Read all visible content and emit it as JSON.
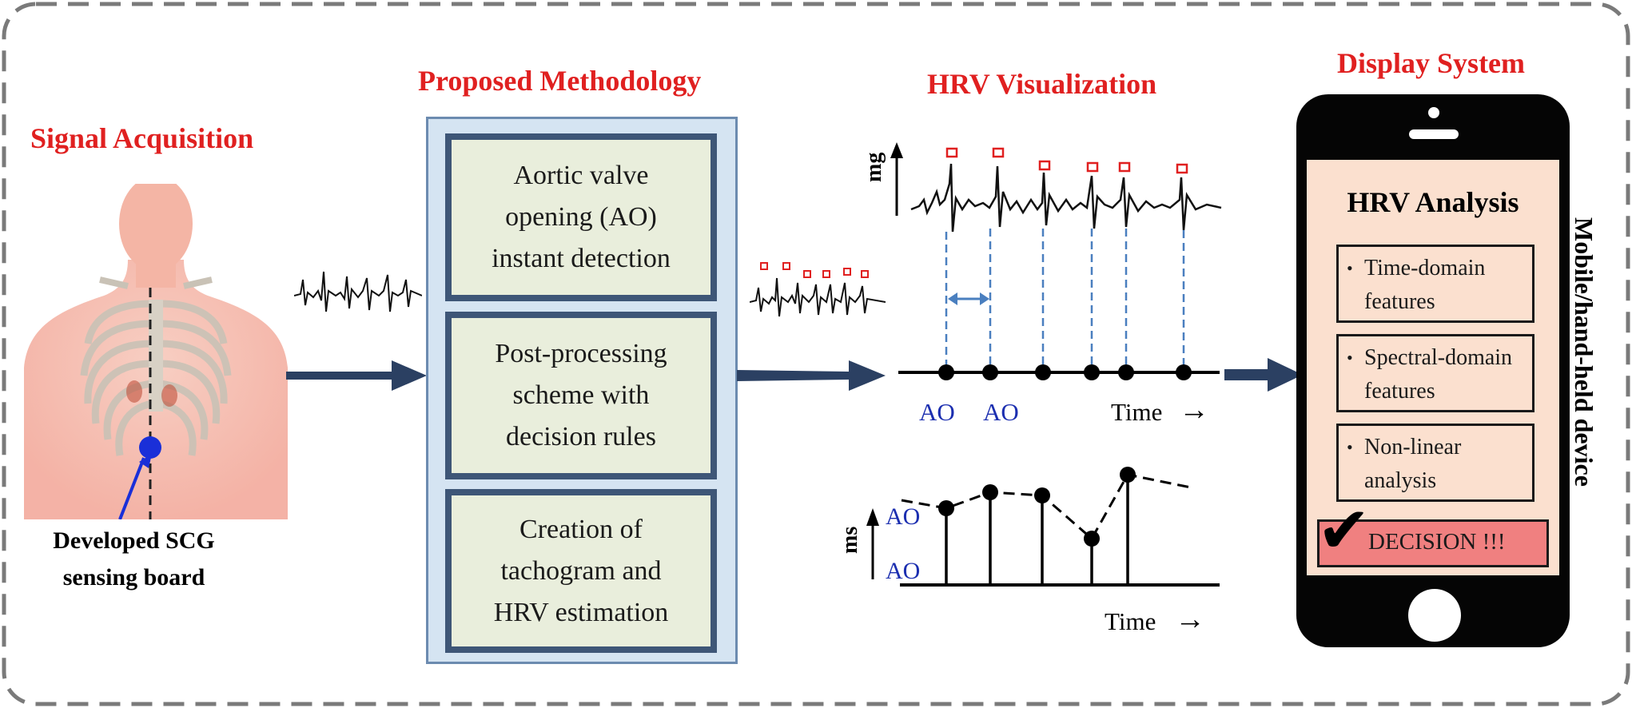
{
  "sections": {
    "signal_acquisition": "Signal Acquisition",
    "proposed_methodology": "Proposed Methodology",
    "hrv_visualization": "HRV Visualization",
    "display_system": "Display System"
  },
  "sensor_caption": [
    "Developed SCG",
    "sensing board"
  ],
  "methodology_steps": [
    [
      "Aortic valve",
      "opening (AO)",
      "instant detection"
    ],
    [
      "Post-processing",
      "scheme with",
      "decision rules"
    ],
    [
      "Creation of",
      "tachogram and",
      "HRV estimation"
    ]
  ],
  "scg_plot": {
    "ylabel": "mg",
    "ao_labels": [
      "AO",
      "AO"
    ],
    "time_label": "Time",
    "time_arrow": "→"
  },
  "tachogram_plot": {
    "ylabel": "ms",
    "ao_labels": [
      "AO",
      "AO"
    ],
    "time_label": "Time",
    "time_arrow": "→"
  },
  "phone": {
    "title": "HRV Analysis",
    "features": [
      "Time-domain\nfeatures",
      "Spectral-domain\nfeatures",
      "Non-linear\nanalysis"
    ],
    "bullet": "•",
    "decision": "DECISION !!!",
    "check": "✔",
    "side_label": "Mobile/hand-held device"
  },
  "colors": {
    "title_red": "#e02020",
    "arrow_navy": "#2b4062",
    "ao_blue": "#1c2fb0",
    "dashed_blue": "#4a7fbf",
    "method_fill": "#e9eedc",
    "screen_fill": "#fbe0cf",
    "decision_fill": "#f08080"
  },
  "icons": [
    "body-illustration",
    "phone-icon",
    "check-icon",
    "arrow-icon"
  ]
}
